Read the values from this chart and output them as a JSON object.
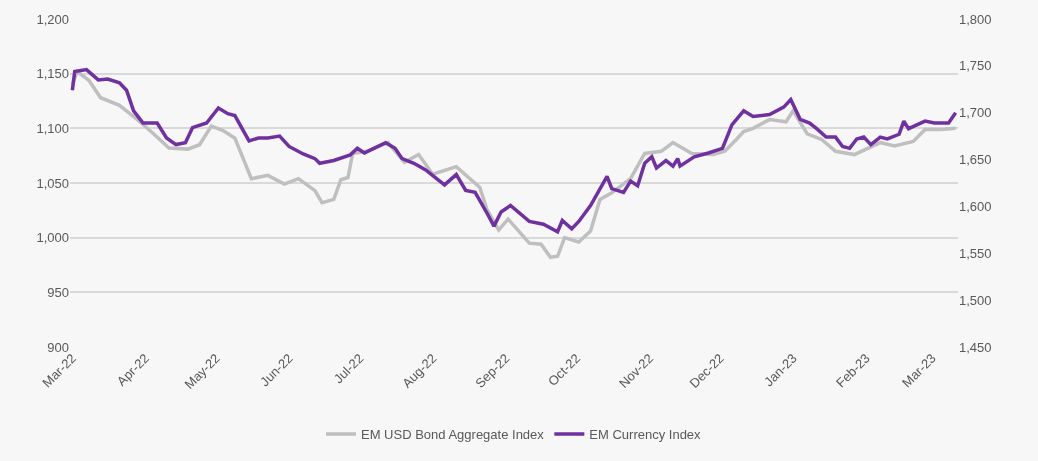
{
  "chart_data": {
    "type": "line",
    "xlim": [
      "2022-02-28",
      "2023-03-12"
    ],
    "xticks": [
      {
        "value": "2022-03-01",
        "label": "Mar-22"
      },
      {
        "value": "2022-04-01",
        "label": "Apr-22"
      },
      {
        "value": "2022-05-01",
        "label": "May-22"
      },
      {
        "value": "2022-06-01",
        "label": "Jun-22"
      },
      {
        "value": "2022-07-01",
        "label": "Jul-22"
      },
      {
        "value": "2022-08-01",
        "label": "Aug-22"
      },
      {
        "value": "2022-09-01",
        "label": "Sep-22"
      },
      {
        "value": "2022-10-01",
        "label": "Oct-22"
      },
      {
        "value": "2022-11-01",
        "label": "Nov-22"
      },
      {
        "value": "2022-12-01",
        "label": "Dec-22"
      },
      {
        "value": "2023-01-01",
        "label": "Jan-23"
      },
      {
        "value": "2023-02-01",
        "label": "Feb-23"
      },
      {
        "value": "2023-03-01",
        "label": "Mar-23"
      }
    ],
    "ylim": [
      900,
      1200
    ],
    "yticks": [
      900,
      950,
      {
        "value": 1000,
        "label": "1,000"
      },
      {
        "value": 1050,
        "label": "1,050"
      },
      {
        "value": 1100,
        "label": "1,100"
      },
      {
        "value": 1150,
        "label": "1,150"
      },
      {
        "value": 1200,
        "label": "1,200"
      }
    ],
    "y2lim": [
      1450,
      1800
    ],
    "y2ticks": [
      {
        "value": 1450,
        "label": "1,450"
      },
      {
        "value": 1500,
        "label": "1,500"
      },
      {
        "value": 1550,
        "label": "1,550"
      },
      {
        "value": 1600,
        "label": "1,600"
      },
      {
        "value": 1650,
        "label": "1,650"
      },
      {
        "value": 1700,
        "label": "1,700"
      },
      {
        "value": 1750,
        "label": "1,750"
      },
      {
        "value": 1800,
        "label": "1,800"
      }
    ],
    "grid": "y",
    "legend": "bottom",
    "marker": "none",
    "line_style": "solid",
    "series": [
      {
        "name": "EM USD Bond Aggregate Index",
        "color": "#bfbfbf",
        "x": [
          "2022-03-01",
          "2022-03-03",
          "2022-03-08",
          "2022-03-13",
          "2022-03-21",
          "2022-03-28",
          "2022-04-04",
          "2022-04-11",
          "2022-04-19",
          "2022-04-24",
          "2022-04-29",
          "2022-05-04",
          "2022-05-09",
          "2022-05-16",
          "2022-05-23",
          "2022-05-30",
          "2022-06-05",
          "2022-06-12",
          "2022-06-15",
          "2022-06-20",
          "2022-06-23",
          "2022-06-26",
          "2022-06-28",
          "2022-07-04",
          "2022-07-13",
          "2022-07-20",
          "2022-07-26",
          "2022-08-01",
          "2022-08-11",
          "2022-08-21",
          "2022-08-24",
          "2022-08-29",
          "2022-09-02",
          "2022-09-11",
          "2022-09-16",
          "2022-09-20",
          "2022-09-23",
          "2022-09-26",
          "2022-10-02",
          "2022-10-07",
          "2022-10-11",
          "2022-10-16",
          "2022-10-24",
          "2022-10-30",
          "2022-11-06",
          "2022-11-11",
          "2022-11-19",
          "2022-11-28",
          "2022-12-03",
          "2022-12-08",
          "2022-12-11",
          "2022-12-15",
          "2022-12-22",
          "2022-12-29",
          "2023-01-01",
          "2023-01-07",
          "2023-01-13",
          "2023-01-19",
          "2023-01-27",
          "2023-02-01",
          "2023-02-07",
          "2023-02-13",
          "2023-02-21",
          "2023-02-26",
          "2023-03-05",
          "2023-03-11"
        ],
        "values": [
          1140,
          1152,
          1144,
          1128,
          1121,
          1109,
          1096,
          1082,
          1081,
          1085,
          1102,
          1098,
          1091,
          1054,
          1057,
          1049,
          1054,
          1043,
          1032,
          1035,
          1053,
          1055,
          1077,
          1079,
          1087,
          1069,
          1076,
          1058,
          1065,
          1046,
          1026,
          1007,
          1017,
          995,
          994,
          982,
          983,
          1000,
          996,
          1006,
          1035,
          1041,
          1054,
          1077,
          1079,
          1087,
          1077,
          1076,
          1079,
          1090,
          1097,
          1100,
          1108,
          1106,
          1116,
          1095,
          1090,
          1079,
          1076,
          1081,
          1087,
          1084,
          1088,
          1099,
          1099,
          1100
        ]
      },
      {
        "name": "EM Currency Index",
        "color": "#7030a0",
        "axis": "y2",
        "x": [
          "2022-03-01",
          "2022-03-02",
          "2022-03-07",
          "2022-03-12",
          "2022-03-16",
          "2022-03-21",
          "2022-03-24",
          "2022-03-27",
          "2022-03-31",
          "2022-04-06",
          "2022-04-10",
          "2022-04-14",
          "2022-04-18",
          "2022-04-21",
          "2022-04-27",
          "2022-05-02",
          "2022-05-06",
          "2022-05-09",
          "2022-05-15",
          "2022-05-19",
          "2022-05-23",
          "2022-05-28",
          "2022-06-01",
          "2022-06-07",
          "2022-06-12",
          "2022-06-14",
          "2022-06-20",
          "2022-06-27",
          "2022-06-30",
          "2022-07-03",
          "2022-07-07",
          "2022-07-12",
          "2022-07-16",
          "2022-07-19",
          "2022-07-24",
          "2022-07-29",
          "2022-08-06",
          "2022-08-11",
          "2022-08-15",
          "2022-08-19",
          "2022-08-24",
          "2022-08-27",
          "2022-08-30",
          "2022-09-03",
          "2022-09-11",
          "2022-09-17",
          "2022-09-23",
          "2022-09-25",
          "2022-09-29",
          "2022-10-02",
          "2022-10-07",
          "2022-10-14",
          "2022-10-16",
          "2022-10-21",
          "2022-10-24",
          "2022-10-27",
          "2022-10-30",
          "2022-11-02",
          "2022-11-04",
          "2022-11-08",
          "2022-11-11",
          "2022-11-13",
          "2022-11-14",
          "2022-11-20",
          "2022-11-26",
          "2022-12-02",
          "2022-12-06",
          "2022-12-11",
          "2022-12-15",
          "2022-12-22",
          "2022-12-28",
          "2022-12-31",
          "2023-01-04",
          "2023-01-08",
          "2023-01-11",
          "2023-01-15",
          "2023-01-19",
          "2023-01-22",
          "2023-01-25",
          "2023-01-28",
          "2023-01-31",
          "2023-02-03",
          "2023-02-07",
          "2023-02-10",
          "2023-02-15",
          "2023-02-17",
          "2023-02-19",
          "2023-02-26",
          "2023-03-02",
          "2023-03-08",
          "2023-03-11"
        ],
        "values": [
          1724,
          1744,
          1746,
          1735,
          1736,
          1732,
          1724,
          1702,
          1689,
          1689,
          1673,
          1666,
          1668,
          1684,
          1689,
          1705,
          1699,
          1697,
          1670,
          1673,
          1673,
          1675,
          1664,
          1656,
          1651,
          1646,
          1649,
          1655,
          1662,
          1657,
          1662,
          1668,
          1662,
          1651,
          1646,
          1639,
          1623,
          1634,
          1617,
          1615,
          1593,
          1579,
          1594,
          1601,
          1584,
          1581,
          1573,
          1585,
          1576,
          1584,
          1601,
          1632,
          1619,
          1615,
          1627,
          1622,
          1646,
          1653,
          1641,
          1649,
          1643,
          1651,
          1643,
          1653,
          1657,
          1662,
          1687,
          1702,
          1696,
          1698,
          1706,
          1714,
          1693,
          1689,
          1683,
          1674,
          1674,
          1664,
          1662,
          1672,
          1674,
          1666,
          1674,
          1672,
          1677,
          1691,
          1683,
          1691,
          1689,
          1689,
          1700
        ]
      }
    ]
  }
}
